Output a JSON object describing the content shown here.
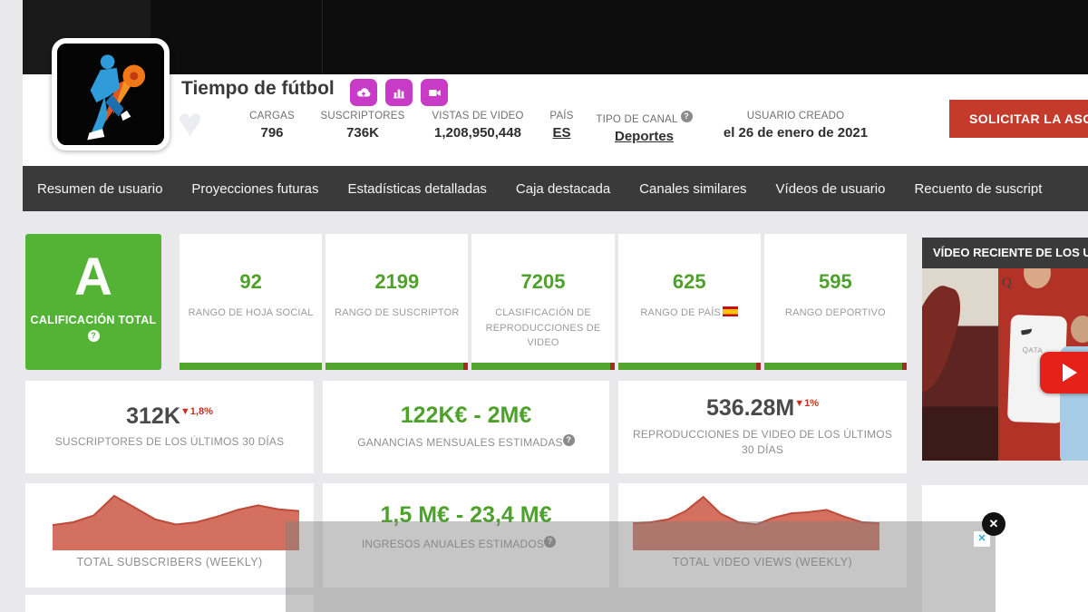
{
  "header": {
    "channel_name": "Tiempo de fútbol",
    "action_buttons": [
      {
        "icon": "upload-cloud-icon"
      },
      {
        "icon": "bar-chart-icon"
      },
      {
        "icon": "video-camera-icon"
      }
    ],
    "stats": [
      {
        "label": "CARGAS",
        "value": "796"
      },
      {
        "label": "SUSCRIPTORES",
        "value": "736K"
      },
      {
        "label": "VISTAS DE VIDEO",
        "value": "1,208,950,448"
      },
      {
        "label": "PAÍS",
        "value": "ES"
      },
      {
        "label": "TIPO DE CANAL",
        "value": "Deportes"
      },
      {
        "label": "USUARIO CREADO",
        "value": "el 26 de enero de 2021"
      }
    ],
    "cta_label": "SOLICITAR LA ASOC"
  },
  "nav": {
    "tabs": [
      "Resumen de usuario",
      "Proyecciones futuras",
      "Estadísticas detalladas",
      "Caja destacada",
      "Canales similares",
      "Vídeos de usuario",
      "Recuento de suscript"
    ]
  },
  "grade": {
    "letter": "A",
    "label": "CALIFICACIÓN TOTAL"
  },
  "ranks": [
    {
      "value": "92",
      "label": "RANGO DE HOJA SOCIAL"
    },
    {
      "value": "2199",
      "label": "RANGO DE SUSCRIPTOR"
    },
    {
      "value": "7205",
      "label": "CLASIFICACIÓN DE REPRODUCCIONES DE VIDEO"
    },
    {
      "value": "625",
      "label": "RANGO DE PAÍS",
      "flag": "spain-flag"
    },
    {
      "value": "595",
      "label": "RANGO DEPORTIVO"
    }
  ],
  "stats_row": [
    {
      "value": "312K",
      "delta": "▼1,8%",
      "label": "SUSCRIPTORES DE LOS ÚLTIMOS 30 DÍAS"
    },
    {
      "value": "122K€ - 2M€",
      "label": "GANANCIAS MENSUALES ESTIMADAS"
    },
    {
      "value": "536.28M",
      "delta": "▼1%",
      "label": "REPRODUCCIONES DE VIDEO DE LOS ÚLTIMOS 30 DÍAS"
    }
  ],
  "annual": {
    "value": "1,5 M€ - 23,4 M€",
    "label": "INGRESOS ANUALES ESTIMADOS"
  },
  "chart_data": [
    {
      "type": "area",
      "title": "TOTAL SUBSCRIBERS (WEEKLY)",
      "xlabel": "weeks (unlabeled sparkline)",
      "ylabel": "total subscribers (relative height %, no axis shown)",
      "values": [
        45,
        50,
        62,
        97,
        76,
        55,
        46,
        50,
        60,
        72,
        80,
        73,
        70
      ],
      "grid": false,
      "legend": false
    },
    {
      "type": "area",
      "title": "TOTAL VIDEO VIEWS (WEEKLY)",
      "xlabel": "weeks (unlabeled sparkline)",
      "ylabel": "total video views (relative height %, no axis shown)",
      "values": [
        48,
        50,
        55,
        70,
        95,
        65,
        50,
        46,
        58,
        66,
        68,
        72,
        60,
        50,
        48
      ],
      "grid": false,
      "legend": false
    }
  ],
  "sidebar": {
    "header": "VÍDEO RECIENTE DE LOS US",
    "thumb_sign_letter": "Q",
    "thumb_jersey_text": "QATA"
  },
  "icons": {
    "help_glyph": "?",
    "heart_glyph": "♥",
    "close_glyph": "✕",
    "adchoices_glyph": "✕"
  },
  "colors": {
    "accent_green": "#4ea12b",
    "grade_green": "#53b335",
    "nav_dark": "#3a3a3a",
    "cta_red": "#c43b2b",
    "decline_red": "#cc2f22",
    "brand_magenta": "#c73bc7",
    "chart_fill": "#d4705f",
    "chart_stroke": "#bf4a38",
    "play_red": "#e62117"
  }
}
